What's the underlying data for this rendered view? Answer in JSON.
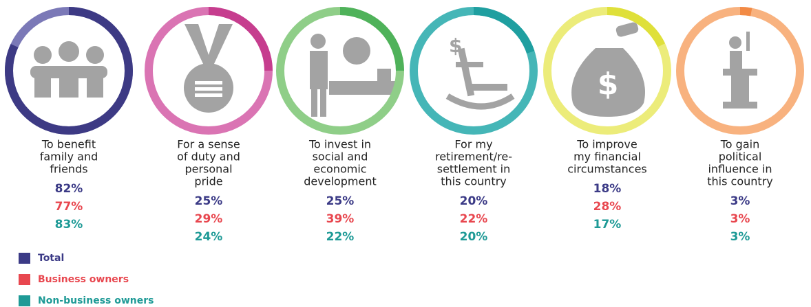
{
  "chart_data": {
    "type": "donut",
    "categories": [
      [
        "To benefit",
        "family and",
        "friends"
      ],
      [
        "For a sense",
        "of duty and",
        "personal",
        "pride"
      ],
      [
        "To invest in",
        "social and",
        "economic",
        "development"
      ],
      [
        "For my",
        "retirement/re-",
        "settlement in",
        "this country"
      ],
      [
        "To improve",
        "my financial",
        "circumstances"
      ],
      [
        "To gain",
        "political",
        "influence in",
        "this country"
      ]
    ],
    "ring_colors": [
      "#3d3a84",
      "#c63d8e",
      "#4fb25a",
      "#1f9fa0",
      "#dfe03a",
      "#f28a45"
    ],
    "ring_light_colors": [
      "#7b79b7",
      "#da74b3",
      "#8fce88",
      "#45b6b7",
      "#ecec7a",
      "#f8b27f"
    ],
    "series": [
      {
        "name": "Total",
        "color": "#3b3a86",
        "values": [
          82,
          25,
          25,
          20,
          18,
          3
        ],
        "value_labels": [
          "82%",
          "25%",
          "25%",
          "20%",
          "18%",
          "3%"
        ]
      },
      {
        "name": "Business owners",
        "color": "#e8474f",
        "values": [
          77,
          29,
          39,
          22,
          28,
          3
        ],
        "value_labels": [
          "77%",
          "29%",
          "39%",
          "22%",
          "28%",
          "3%"
        ]
      },
      {
        "name": "Non-business owners",
        "color": "#1e9a96",
        "values": [
          83,
          24,
          22,
          20,
          17,
          3
        ],
        "value_labels": [
          "83%",
          "24%",
          "22%",
          "20%",
          "17%",
          "3%"
        ]
      }
    ]
  }
}
